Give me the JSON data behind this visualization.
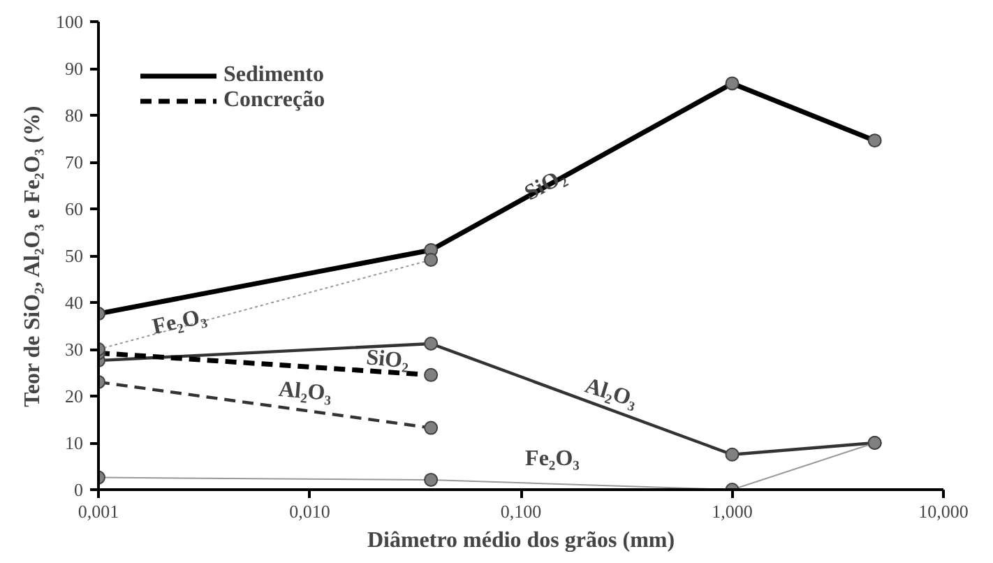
{
  "chart_data": {
    "type": "line",
    "xlabel": "Diâmetro médio dos grãos (mm)",
    "ylabel": "Teor de SiO₂, Al₂O₃ e Fe₂O₃ (%)",
    "log": "x",
    "grid": false,
    "legend": "top left",
    "marker": "circle",
    "xlim": [
      0.001,
      10
    ],
    "ylim": [
      0,
      100
    ],
    "xticks": [
      {
        "value": 0.001,
        "label": "0,001"
      },
      {
        "value": 0.01,
        "label": "0,010"
      },
      {
        "value": 0.1,
        "label": "0,100"
      },
      {
        "value": 1,
        "label": "1,000"
      },
      {
        "value": 10,
        "label": "10,000"
      }
    ],
    "yticks": [
      0,
      10,
      20,
      30,
      40,
      50,
      60,
      70,
      80,
      90,
      100
    ],
    "series": [
      {
        "name": "Sedimento",
        "color": "#000000",
        "line_style": "solid",
        "x": [
          0.001,
          0.0375,
          1,
          4.73
        ],
        "values": [
          37.6,
          51.2,
          86.8,
          74.6
        ]
      },
      {
        "color": "#333333",
        "line_style": "solid",
        "x": [
          0.001,
          0.0375,
          1,
          4.73
        ],
        "values": [
          27.6,
          31.2,
          7.5,
          10.0
        ]
      },
      {
        "color": "#999999",
        "line_style": "solid",
        "x": [
          0.001,
          0.0375,
          1,
          4.73
        ],
        "values": [
          2.6,
          2.1,
          0,
          10.0
        ]
      },
      {
        "name": "Concreção",
        "color": "#000000",
        "line_style": "dashed",
        "x": [
          0.001,
          0.0375
        ],
        "values": [
          29.2,
          24.5
        ]
      },
      {
        "color": "#333333",
        "line_style": "dashed",
        "x": [
          0.001,
          0.0375
        ],
        "values": [
          23.0,
          13.2
        ]
      },
      {
        "color": "#999999",
        "line_style": "dotted",
        "x": [
          0.001,
          0.0375
        ],
        "values": [
          30.0,
          49.1
        ]
      }
    ],
    "annotations": [
      "SiO₂",
      "Fe₂O₃",
      "SiO₂",
      "Al₂O₃",
      "Al₂O₃",
      "Fe₂O₃"
    ]
  }
}
